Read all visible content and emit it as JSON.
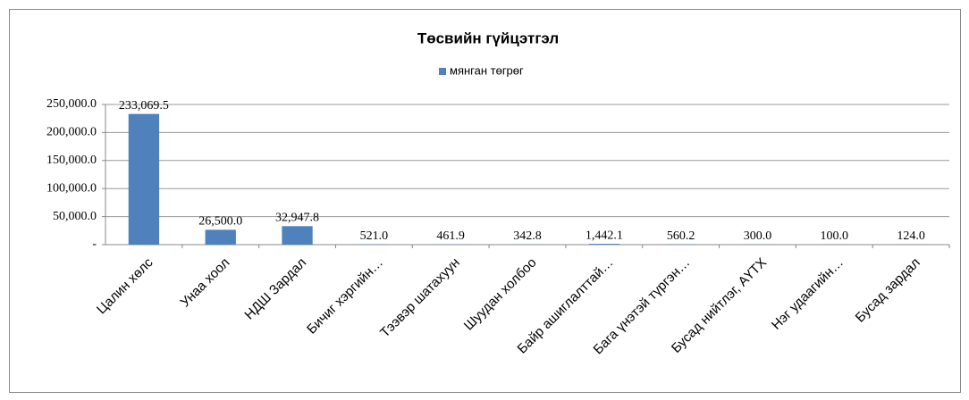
{
  "chart_data": {
    "type": "bar",
    "title": "Төсвийн гүйцэтгэл",
    "categories": [
      "Цалин хөлс",
      "Унаа хоол",
      "НДШ Зардал",
      "Бичиг хэргийн…",
      "Тээвэр шатахуун",
      "Шуудан холбоо",
      "Байр ашиглалттай…",
      "Бага үнэтэй түргэн…",
      "Бусад нийтлэг, АҮТХ",
      "Нэг удаагийн…",
      "Бусад зардал"
    ],
    "series": [
      {
        "name": "мянган төгрөг",
        "color": "#4f81bd",
        "values": [
          233069.5,
          26500.0,
          32947.8,
          521.0,
          461.9,
          342.8,
          1442.1,
          560.2,
          300.0,
          100.0,
          124.0
        ],
        "value_labels": [
          "233,069.5",
          "26,500.0",
          "32,947.8",
          "521.0",
          "461.9",
          "342.8",
          "1,442.1",
          "560.2",
          "300.0",
          "100.0",
          "124.0"
        ]
      }
    ],
    "ylim": [
      0,
      250000
    ],
    "yticks": [
      {
        "value": 0,
        "label": "-"
      },
      {
        "value": 50000,
        "label": "50,000.0"
      },
      {
        "value": 100000,
        "label": "100,000.0"
      },
      {
        "value": 150000,
        "label": "150,000.0"
      },
      {
        "value": 200000,
        "label": "200,000.0"
      },
      {
        "value": 250000,
        "label": "250,000.0"
      }
    ],
    "grid": true,
    "legend": "top"
  }
}
